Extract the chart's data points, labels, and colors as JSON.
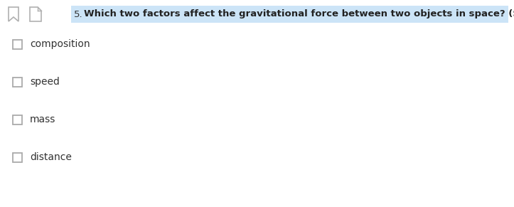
{
  "background_color": "#ffffff",
  "question_number": "5.",
  "question_text": "Which two factors affect the gravitational force between two objects in space? (Select two.)",
  "question_highlight_color": "#cce4f7",
  "option_text_color": "#333333",
  "checkbox_color": "#aaaaaa",
  "options": [
    "composition",
    "speed",
    "mass",
    "distance"
  ],
  "question_fontsize": 9.5,
  "option_fontsize": 10.0,
  "fig_width": 7.23,
  "fig_height": 2.91,
  "dpi": 100
}
